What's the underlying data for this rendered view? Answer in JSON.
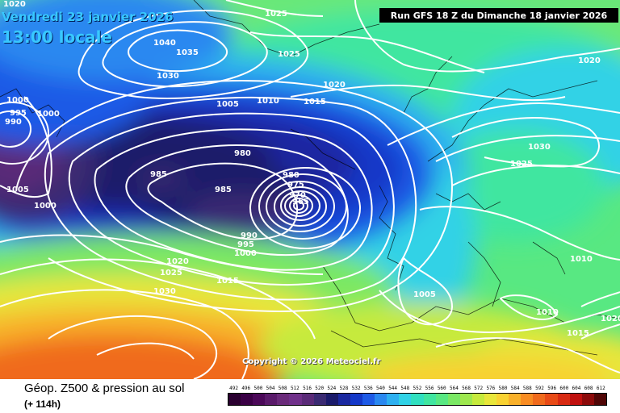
{
  "header": {
    "date": "Vendredi 23 janvier 2026",
    "time": "13:00 locale",
    "run": "Run GFS 18 Z du Dimanche 18 janvier 2026"
  },
  "copyright": "Copyright © 2026 Meteociel.fr",
  "legend": {
    "title": "Géop. Z500 & pression au sol",
    "subtitle": "(+ 114h)",
    "scale": [
      {
        "value": "492",
        "color": "#2a0030"
      },
      {
        "value": "496",
        "color": "#3a0045"
      },
      {
        "value": "500",
        "color": "#4b0858"
      },
      {
        "value": "504",
        "color": "#5a1a6a"
      },
      {
        "value": "508",
        "color": "#6a2a7a"
      },
      {
        "value": "512",
        "color": "#70308a"
      },
      {
        "value": "516",
        "color": "#5a2a78"
      },
      {
        "value": "520",
        "color": "#3a2a72"
      },
      {
        "value": "524",
        "color": "#1a1a6a"
      },
      {
        "value": "528",
        "color": "#1a28a0"
      },
      {
        "value": "532",
        "color": "#1438c8"
      },
      {
        "value": "536",
        "color": "#1e5ae6"
      },
      {
        "value": "540",
        "color": "#2a88f0"
      },
      {
        "value": "544",
        "color": "#2eb0f0"
      },
      {
        "value": "548",
        "color": "#30d2e6"
      },
      {
        "value": "552",
        "color": "#30e0c0"
      },
      {
        "value": "556",
        "color": "#40e6a0"
      },
      {
        "value": "560",
        "color": "#58e882"
      },
      {
        "value": "564",
        "color": "#7ae864"
      },
      {
        "value": "568",
        "color": "#9ee84e"
      },
      {
        "value": "572",
        "color": "#c6ea3c"
      },
      {
        "value": "576",
        "color": "#e8e63a"
      },
      {
        "value": "580",
        "color": "#f8d232"
      },
      {
        "value": "584",
        "color": "#f8b02a"
      },
      {
        "value": "588",
        "color": "#f88c22"
      },
      {
        "value": "592",
        "color": "#f06a1c"
      },
      {
        "value": "596",
        "color": "#e84a16"
      },
      {
        "value": "600",
        "color": "#d82a12"
      },
      {
        "value": "604",
        "color": "#c0100e"
      },
      {
        "value": "608",
        "color": "#8c0a0a"
      },
      {
        "value": "612",
        "color": "#500606"
      }
    ]
  },
  "isobar_labels": [
    "1020",
    "1025",
    "1040",
    "1035",
    "1030",
    "1025",
    "1020",
    "1020",
    "1000",
    "995",
    "990",
    "1000",
    "1005",
    "1010",
    "1015",
    "980",
    "985",
    "985",
    "980",
    "975",
    "970",
    "965",
    "990",
    "995",
    "1000",
    "1005",
    "1000",
    "1020",
    "1025",
    "1015",
    "1030",
    "1030",
    "1025",
    "1010",
    "1005",
    "1010",
    "1015",
    "1020"
  ],
  "colors": {
    "title": "#38c8ff",
    "isobar": "#ffffff",
    "coast": "#000000"
  }
}
